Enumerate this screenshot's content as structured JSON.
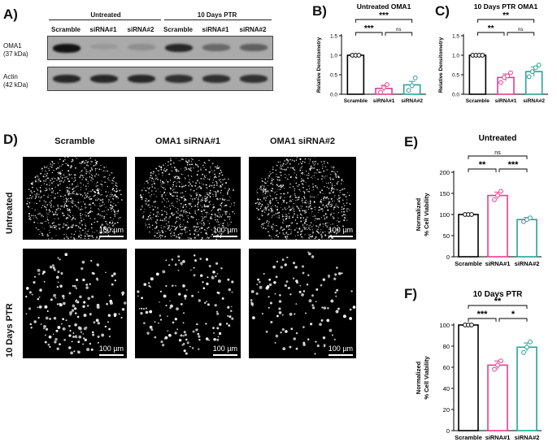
{
  "panels": {
    "a": "A)",
    "b": "B)",
    "c": "C)",
    "d": "D)",
    "e": "E)",
    "f": "F)"
  },
  "blot": {
    "group_untreated": "Untreated",
    "group_ptr": "10 Days PTR",
    "lanes": [
      "Scramble",
      "siRNA#1",
      "siRNA#2",
      "Scramble",
      "siRNA#1",
      "siRNA#2"
    ],
    "rows": [
      {
        "name": "OMA1",
        "size": "(37 kDa)",
        "intensities": [
          0.95,
          0.25,
          0.3,
          0.85,
          0.5,
          0.55
        ]
      },
      {
        "name": "Actin",
        "size": "(42 kDa)",
        "intensities": [
          0.85,
          0.85,
          0.85,
          0.8,
          0.8,
          0.8
        ]
      }
    ]
  },
  "microscopy": {
    "columns": [
      "Scramble",
      "OMA1 siRNA#1",
      "OMA1 siRNA#2"
    ],
    "rows": [
      "Untreated",
      "10 Days PTR"
    ],
    "scale": "100 µm"
  },
  "chart_data": [
    {
      "id": "B",
      "type": "bar",
      "title": "Untreated OMA1",
      "ylabel": "Relative Densitometry",
      "categories": [
        "Scramble",
        "siRNA#1",
        "siRNA#2"
      ],
      "values": [
        1.0,
        0.15,
        0.24
      ],
      "errors": [
        0.0,
        0.08,
        0.09
      ],
      "points": [
        [
          1.0,
          1.0,
          1.0
        ],
        [
          0.05,
          0.17,
          0.25
        ],
        [
          0.1,
          0.22,
          0.42
        ]
      ],
      "colors": [
        "#000000",
        "#e83e8c",
        "#2aa198"
      ],
      "ylim": [
        0,
        1.5
      ],
      "yticks": [
        "0.0",
        "0.5",
        "1.0",
        "1.5"
      ],
      "comparisons": [
        {
          "from": 0,
          "to": 1,
          "label": "***",
          "level": 1
        },
        {
          "from": 1,
          "to": 2,
          "label": "ns",
          "level": 1
        },
        {
          "from": 0,
          "to": 2,
          "label": "***",
          "level": 2
        }
      ]
    },
    {
      "id": "C",
      "type": "bar",
      "title": "10 Days PTR OMA1",
      "ylabel": "Relative Densitometry",
      "categories": [
        "Scramble",
        "siRNA#1",
        "siRNA#2"
      ],
      "values": [
        1.0,
        0.43,
        0.58
      ],
      "errors": [
        0.0,
        0.09,
        0.12
      ],
      "points": [
        [
          1.0,
          1.0,
          1.0,
          1.0
        ],
        [
          0.3,
          0.43,
          0.47,
          0.55
        ],
        [
          0.45,
          0.58,
          0.68,
          0.75
        ]
      ],
      "colors": [
        "#000000",
        "#e83e8c",
        "#2aa198"
      ],
      "ylim": [
        0,
        1.5
      ],
      "yticks": [
        "0.0",
        "0.5",
        "1.0",
        "1.5"
      ],
      "comparisons": [
        {
          "from": 0,
          "to": 1,
          "label": "**",
          "level": 1
        },
        {
          "from": 1,
          "to": 2,
          "label": "ns",
          "level": 1
        },
        {
          "from": 0,
          "to": 2,
          "label": "**",
          "level": 2
        }
      ]
    },
    {
      "id": "E",
      "type": "bar",
      "title": "Untreated",
      "ylabel": "Normalized\n% Cell Viability",
      "categories": [
        "Scramble",
        "siRNA#1",
        "siRNA#2"
      ],
      "values": [
        100,
        145,
        88
      ],
      "errors": [
        0,
        8,
        5
      ],
      "points": [
        [
          100,
          100,
          100
        ],
        [
          135,
          145,
          155
        ],
        [
          83,
          88,
          92
        ]
      ],
      "colors": [
        "#000000",
        "#e83e8c",
        "#2aa198"
      ],
      "ylim": [
        0,
        200
      ],
      "yticks": [
        "0",
        "50",
        "100",
        "150",
        "200"
      ],
      "comparisons": [
        {
          "from": 0,
          "to": 1,
          "label": "**",
          "level": 1
        },
        {
          "from": 1,
          "to": 2,
          "label": "***",
          "level": 1
        },
        {
          "from": 0,
          "to": 2,
          "label": "ns",
          "level": 2
        }
      ]
    },
    {
      "id": "F",
      "type": "bar",
      "title": "10 Days PTR",
      "ylabel": "Normalized\n% Cell Viability",
      "categories": [
        "Scramble",
        "siRNA#1",
        "siRNA#2"
      ],
      "values": [
        100,
        62,
        79
      ],
      "errors": [
        0,
        4,
        4
      ],
      "points": [
        [
          100,
          100,
          100
        ],
        [
          58,
          62,
          66
        ],
        [
          74,
          79,
          84
        ]
      ],
      "colors": [
        "#000000",
        "#e83e8c",
        "#2aa198"
      ],
      "ylim": [
        0,
        100
      ],
      "yticks": [
        "0",
        "20",
        "40",
        "60",
        "80",
        "100"
      ],
      "comparisons": [
        {
          "from": 0,
          "to": 1,
          "label": "***",
          "level": 1
        },
        {
          "from": 1,
          "to": 2,
          "label": "*",
          "level": 1
        },
        {
          "from": 0,
          "to": 2,
          "label": "**",
          "level": 2
        }
      ]
    }
  ]
}
